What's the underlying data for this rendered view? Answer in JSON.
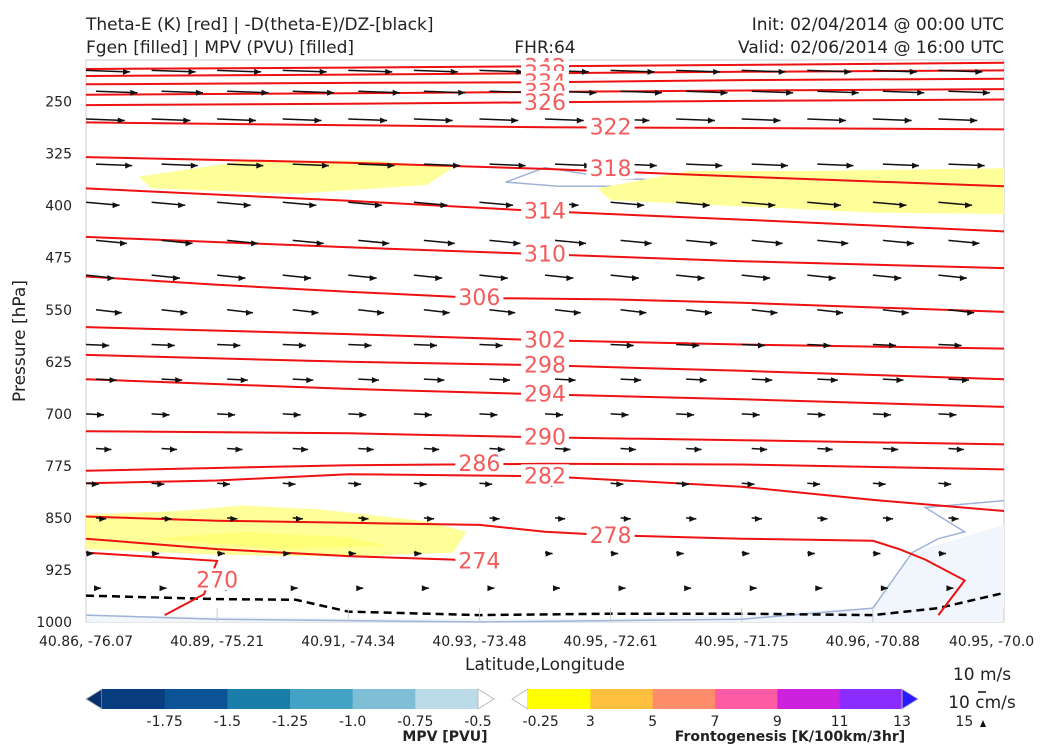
{
  "header": {
    "title_left_1": "Theta-E (K) [red] | -D(theta-E)/DZ-[black]",
    "title_left_2": "Fgen [filled] | MPV (PVU) [filled]",
    "fhr": "FHR:64",
    "init": "Init: 02/04/2014 @ 00:00 UTC",
    "valid": "Valid: 02/06/2014 @ 16:00 UTC"
  },
  "chart_data": {
    "type": "cross-section contour",
    "xlabel": "Latitude,Longitude",
    "ylabel": "Pressure [hPa]",
    "x_ticks": [
      "40.86, -76.07",
      "40.89, -75.21",
      "40.91, -74.34",
      "40.93, -73.48",
      "40.95, -72.61",
      "40.95, -71.75",
      "40.96, -70.88",
      "40.95, -70.0"
    ],
    "y_ticks": [
      250,
      325,
      400,
      475,
      550,
      625,
      700,
      775,
      850,
      925,
      1000
    ],
    "ylim": [
      1000,
      190
    ],
    "xlim": [
      0,
      7
    ],
    "thetae_contours": [
      {
        "label": "342",
        "points": [
          [
            0,
            203
          ],
          [
            2,
            201
          ],
          [
            3.5,
            199
          ],
          [
            5,
            197
          ],
          [
            7,
            194
          ]
        ]
      },
      {
        "label": "338",
        "points": [
          [
            0,
            213
          ],
          [
            2,
            211
          ],
          [
            3.5,
            209
          ],
          [
            5,
            207
          ],
          [
            7,
            205
          ]
        ]
      },
      {
        "label": "334",
        "points": [
          [
            0,
            225
          ],
          [
            2,
            223
          ],
          [
            3.5,
            222
          ],
          [
            5,
            219
          ],
          [
            7,
            217
          ]
        ]
      },
      {
        "label": "330",
        "points": [
          [
            0,
            240
          ],
          [
            2,
            238
          ],
          [
            3.5,
            236
          ],
          [
            5,
            234
          ],
          [
            7,
            232
          ]
        ]
      },
      {
        "label": "326",
        "points": [
          [
            0,
            255
          ],
          [
            2,
            253
          ],
          [
            3.5,
            251
          ],
          [
            5,
            249
          ],
          [
            7,
            247
          ]
        ]
      },
      {
        "label": "322",
        "points": [
          [
            0,
            280
          ],
          [
            2,
            284
          ],
          [
            3.5,
            287
          ],
          [
            5,
            288
          ],
          [
            7,
            290
          ]
        ]
      },
      {
        "label": "318",
        "points": [
          [
            0,
            330
          ],
          [
            2,
            338
          ],
          [
            3.5,
            347
          ],
          [
            5,
            358
          ],
          [
            7,
            372
          ]
        ]
      },
      {
        "label": "314",
        "points": [
          [
            0,
            375
          ],
          [
            2,
            393
          ],
          [
            3.5,
            408
          ],
          [
            5,
            420
          ],
          [
            7,
            437
          ]
        ]
      },
      {
        "label": "310",
        "points": [
          [
            0,
            445
          ],
          [
            2,
            460
          ],
          [
            3.5,
            470
          ],
          [
            5,
            480
          ],
          [
            7,
            490
          ]
        ]
      },
      {
        "label": "306",
        "points": [
          [
            0,
            502
          ],
          [
            1,
            514
          ],
          [
            2,
            524
          ],
          [
            3,
            533
          ],
          [
            4,
            535
          ],
          [
            5,
            540
          ],
          [
            7,
            553
          ]
        ]
      },
      {
        "label": "302",
        "points": [
          [
            0,
            575
          ],
          [
            2,
            585
          ],
          [
            3.5,
            594
          ],
          [
            5,
            600
          ],
          [
            7,
            606
          ]
        ]
      },
      {
        "label": "298",
        "points": [
          [
            0,
            615
          ],
          [
            2,
            625
          ],
          [
            3.5,
            630
          ],
          [
            5,
            638
          ],
          [
            7,
            650
          ]
        ]
      },
      {
        "label": "294",
        "points": [
          [
            0,
            650
          ],
          [
            2,
            664
          ],
          [
            3.5,
            672
          ],
          [
            5,
            679
          ],
          [
            7,
            690
          ]
        ]
      },
      {
        "label": "290",
        "points": [
          [
            0,
            725
          ],
          [
            2,
            728
          ],
          [
            3.5,
            734
          ],
          [
            5,
            738
          ],
          [
            7,
            744
          ]
        ]
      },
      {
        "label": "286",
        "points": [
          [
            0,
            782
          ],
          [
            2,
            774
          ],
          [
            3.5,
            772
          ],
          [
            5,
            773
          ],
          [
            7,
            780
          ]
        ]
      },
      {
        "label": "282",
        "points": [
          [
            0,
            800
          ],
          [
            1,
            796
          ],
          [
            2,
            787
          ],
          [
            3.5,
            790
          ],
          [
            5,
            805
          ],
          [
            6,
            824
          ],
          [
            7,
            840
          ]
        ]
      },
      {
        "label": "278",
        "points": [
          [
            0,
            848
          ],
          [
            1,
            854
          ],
          [
            2,
            857
          ],
          [
            3,
            860
          ],
          [
            3.5,
            870
          ],
          [
            4,
            875
          ],
          [
            5,
            880
          ],
          [
            6,
            883
          ],
          [
            6.2,
            895
          ],
          [
            6.4,
            910
          ],
          [
            6.7,
            940
          ],
          [
            6.5,
            990
          ]
        ]
      },
      {
        "label": "274",
        "points": [
          [
            0,
            880
          ],
          [
            1,
            895
          ],
          [
            2,
            905
          ],
          [
            2.8,
            910
          ],
          [
            3,
            915
          ]
        ]
      },
      {
        "label": "270",
        "points": [
          [
            0,
            900
          ],
          [
            1,
            912
          ],
          [
            0.9,
            960
          ],
          [
            0.6,
            990
          ]
        ]
      }
    ],
    "thetae_labels": [
      {
        "label": "342",
        "x": 3.5,
        "y": 201
      },
      {
        "label": "338",
        "x": 3.5,
        "y": 210
      },
      {
        "label": "334",
        "x": 3.5,
        "y": 223
      },
      {
        "label": "330",
        "x": 3.5,
        "y": 237
      },
      {
        "label": "326",
        "x": 3.5,
        "y": 252
      },
      {
        "label": "322",
        "x": 4.0,
        "y": 287
      },
      {
        "label": "318",
        "x": 4.0,
        "y": 347
      },
      {
        "label": "314",
        "x": 3.5,
        "y": 408
      },
      {
        "label": "310",
        "x": 3.5,
        "y": 470
      },
      {
        "label": "306",
        "x": 3.0,
        "y": 533
      },
      {
        "label": "302",
        "x": 3.5,
        "y": 594
      },
      {
        "label": "298",
        "x": 3.5,
        "y": 630
      },
      {
        "label": "294",
        "x": 3.5,
        "y": 672
      },
      {
        "label": "290",
        "x": 3.5,
        "y": 734
      },
      {
        "label": "286",
        "x": 3.0,
        "y": 772
      },
      {
        "label": "282",
        "x": 3.5,
        "y": 790
      },
      {
        "label": "278",
        "x": 4.0,
        "y": 876
      },
      {
        "label": "274",
        "x": 3.0,
        "y": 913
      },
      {
        "label": "270",
        "x": 1.0,
        "y": 940
      }
    ],
    "mpv_filled": [
      {
        "name": "mpv-contour-1",
        "color": "#b8cde8",
        "points": [
          [
            3.2,
            366
          ],
          [
            3.5,
            345
          ],
          [
            4.0,
            360
          ],
          [
            5.0,
            368
          ],
          [
            6.0,
            366
          ],
          [
            6.0,
            368
          ],
          [
            4.2,
            372
          ],
          [
            3.6,
            372
          ]
        ]
      },
      {
        "name": "mpv-region-surface",
        "color": "#f0f6fb",
        "points": [
          [
            0,
            990
          ],
          [
            2,
            995
          ],
          [
            4,
            995
          ],
          [
            6,
            980
          ],
          [
            6.3,
            900
          ],
          [
            7,
            860
          ],
          [
            7,
            1000
          ],
          [
            0,
            1000
          ]
        ]
      }
    ],
    "mpv_line": [
      [
        0,
        990
      ],
      [
        1,
        996
      ],
      [
        3,
        1000
      ],
      [
        5,
        996
      ],
      [
        6,
        980
      ],
      [
        6.3,
        900
      ],
      [
        6.5,
        880
      ],
      [
        6.7,
        870
      ],
      [
        6.4,
        835
      ],
      [
        7,
        825
      ]
    ],
    "dthetae_dz_dashed": [
      [
        0,
        962
      ],
      [
        1,
        967
      ],
      [
        1.6,
        968
      ],
      [
        2,
        985
      ],
      [
        3,
        990
      ],
      [
        4,
        988
      ],
      [
        5,
        988
      ],
      [
        6,
        990
      ],
      [
        6.5,
        980
      ],
      [
        7,
        958
      ]
    ],
    "fgen_filled": [
      {
        "name": "fgen-upper-left",
        "color": "#ffff99",
        "points": [
          [
            0.4,
            358
          ],
          [
            1.2,
            336
          ],
          [
            2.2,
            335
          ],
          [
            2.8,
            345
          ],
          [
            2.6,
            370
          ],
          [
            1.6,
            383
          ],
          [
            0.5,
            375
          ]
        ]
      },
      {
        "name": "fgen-upper-right",
        "color": "#ffff99",
        "points": [
          [
            3.9,
            375
          ],
          [
            4.6,
            350
          ],
          [
            5.5,
            350
          ],
          [
            7,
            346
          ],
          [
            7,
            412
          ],
          [
            6,
            410
          ],
          [
            4.9,
            400
          ],
          [
            4.0,
            392
          ]
        ]
      },
      {
        "name": "fgen-lower-left",
        "color": "#ffff99",
        "points": [
          [
            0,
            845
          ],
          [
            0.7,
            840
          ],
          [
            1.2,
            832
          ],
          [
            1.8,
            838
          ],
          [
            2.6,
            855
          ],
          [
            2.9,
            870
          ],
          [
            2.8,
            900
          ],
          [
            2.0,
            906
          ],
          [
            1.0,
            903
          ],
          [
            0,
            895
          ]
        ]
      },
      {
        "name": "fgen-lower-left-2",
        "color": "#ffff77",
        "points": [
          [
            0.5,
            880
          ],
          [
            1.2,
            870
          ],
          [
            2.0,
            878
          ],
          [
            2.3,
            890
          ],
          [
            1.5,
            895
          ]
        ]
      }
    ],
    "wind_rows": [
      205,
      235,
      275,
      340,
      395,
      450,
      500,
      550,
      600,
      650,
      700,
      750,
      800,
      850,
      900,
      950
    ],
    "wind_cols": [
      0,
      0.5,
      1,
      1.5,
      2,
      2.5,
      3,
      3.5,
      4,
      4.5,
      5,
      5.5,
      6,
      6.5,
      7
    ],
    "mpv_colorbar": {
      "label": "MPV [PVU]",
      "ticks": [
        "-1.75",
        "-1.5",
        "-1.25",
        "-1.0",
        "-0.75",
        "-0.5",
        "-0.25"
      ],
      "colors": [
        "#08306b",
        "#083d7f",
        "#0b5394",
        "#1a7fa8",
        "#43a2c6",
        "#7fbfd6",
        "#bcdbe8",
        "#ffffff"
      ]
    },
    "fgen_colorbar": {
      "label": "Frontogenesis [K/100km/3hr]",
      "ticks": [
        "3",
        "5",
        "7",
        "9",
        "11",
        "13",
        "15"
      ],
      "colors": [
        "#ffffff",
        "#ffff00",
        "#ffc040",
        "#ff8c6a",
        "#ff5aa4",
        "#cc22dd",
        "#8a2bff",
        "#2a1aff"
      ]
    },
    "wind_key": {
      "top": "10 m/s",
      "bottom": "10 cm/s"
    }
  }
}
